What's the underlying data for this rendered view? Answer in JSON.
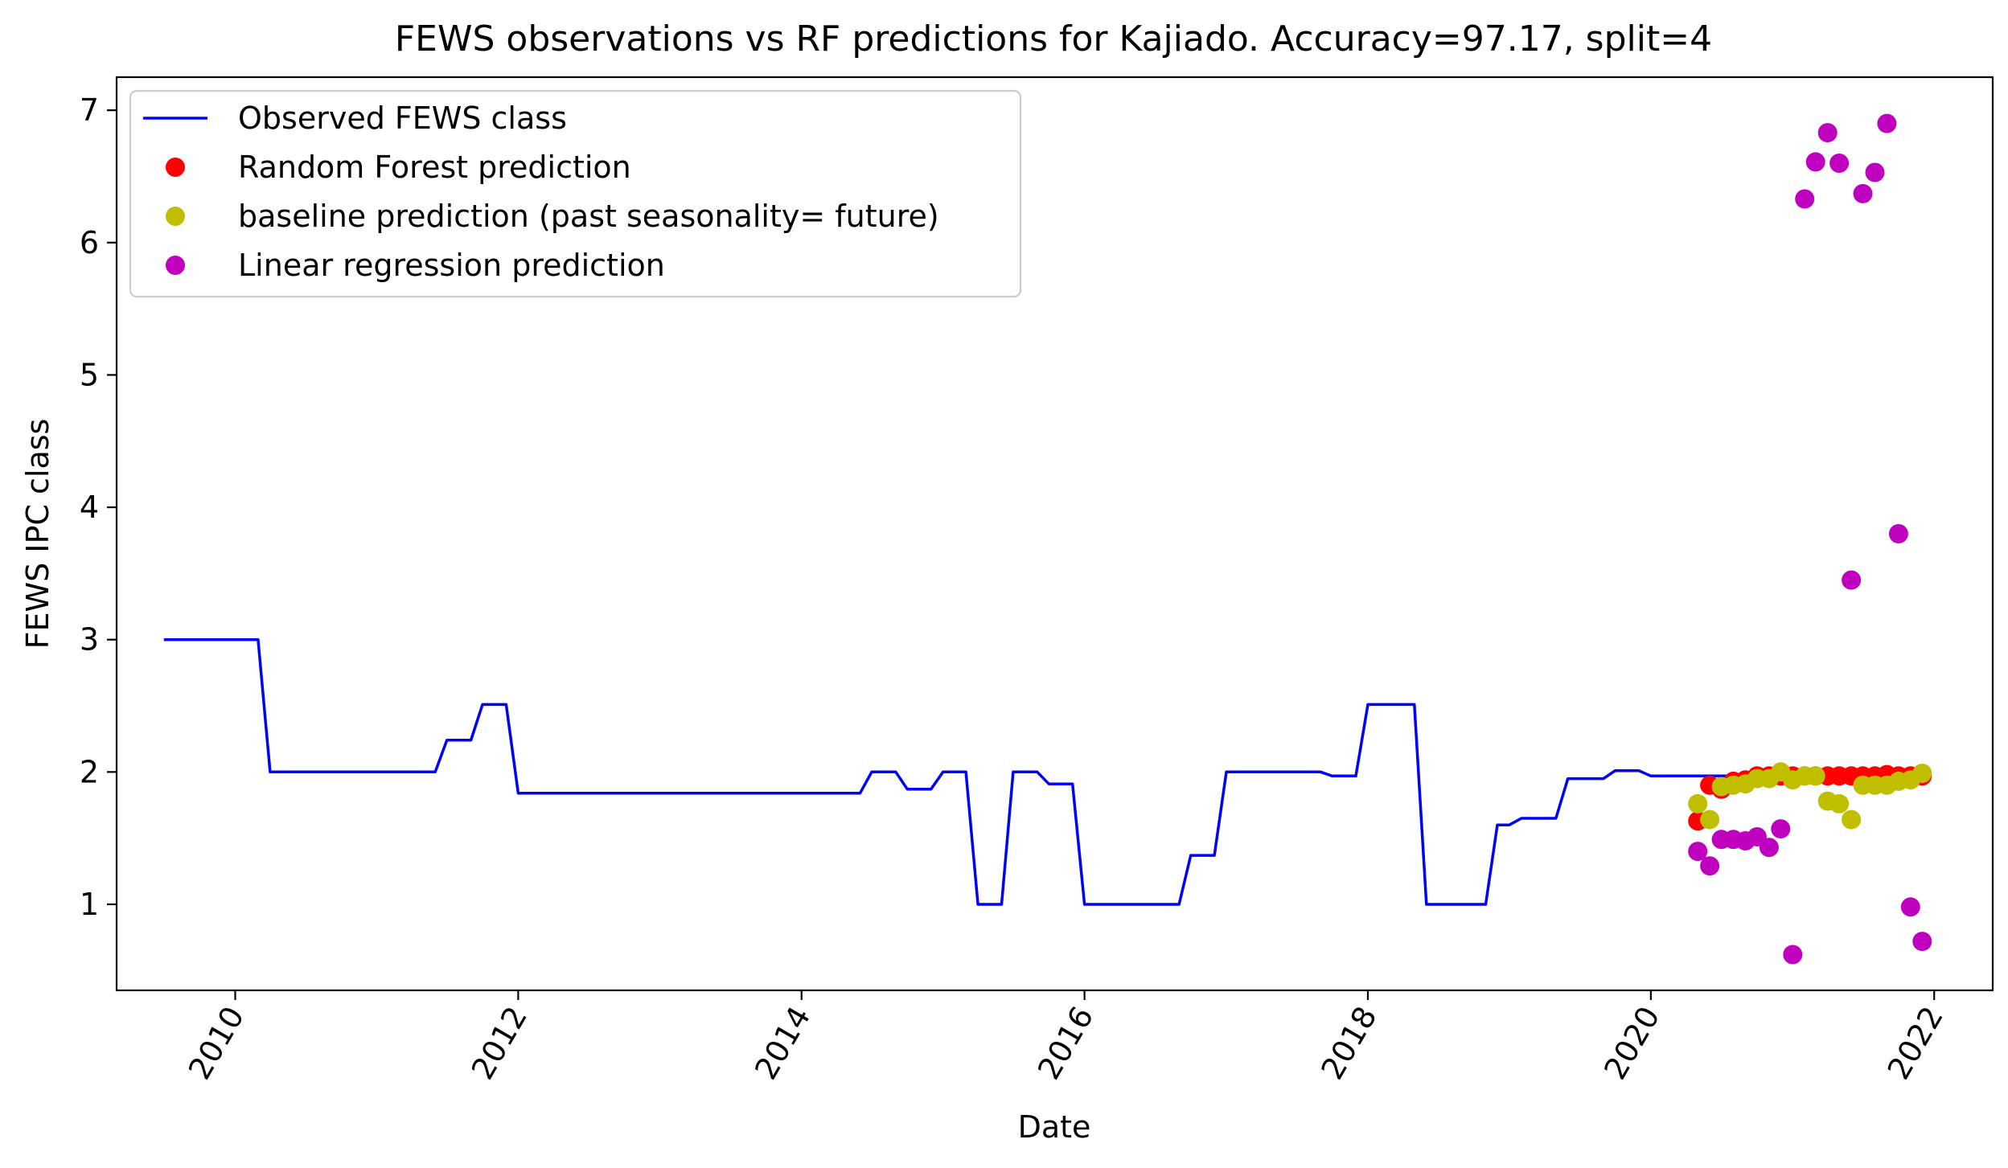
{
  "chart_data": {
    "type": "line",
    "title": "FEWS observations vs RF predictions for Kajiado. Accuracy=97.17, split=4",
    "xlabel": "Date",
    "ylabel": "FEWS IPC class",
    "xlim": [
      "2009-03-01",
      "2022-06-01"
    ],
    "ylim": [
      0.35,
      7.25
    ],
    "x_ticks": [
      {
        "label": "2010",
        "date": "2010-01-01"
      },
      {
        "label": "2012",
        "date": "2012-01-01"
      },
      {
        "label": "2014",
        "date": "2014-01-01"
      },
      {
        "label": "2016",
        "date": "2016-01-01"
      },
      {
        "label": "2018",
        "date": "2018-01-01"
      },
      {
        "label": "2020",
        "date": "2020-01-01"
      },
      {
        "label": "2022",
        "date": "2022-01-01"
      }
    ],
    "y_ticks": [
      {
        "label": "1",
        "value": 1
      },
      {
        "label": "2",
        "value": 2
      },
      {
        "label": "3",
        "value": 3
      },
      {
        "label": "4",
        "value": 4
      },
      {
        "label": "5",
        "value": 5
      },
      {
        "label": "6",
        "value": 6
      },
      {
        "label": "7",
        "value": 7
      }
    ],
    "x_tick_rotation": 60,
    "grid": false,
    "legend_position": "upper left",
    "series": [
      {
        "name": "Observed FEWS class",
        "type": "line",
        "color": "#0000ff",
        "points": [
          [
            "2009-07-01",
            3.0
          ],
          [
            "2010-03-01",
            3.0
          ],
          [
            "2010-04-01",
            2.0
          ],
          [
            "2011-06-01",
            2.0
          ],
          [
            "2011-07-01",
            2.24
          ],
          [
            "2011-09-01",
            2.24
          ],
          [
            "2011-10-01",
            2.51
          ],
          [
            "2011-12-01",
            2.51
          ],
          [
            "2012-01-01",
            1.84
          ],
          [
            "2014-06-01",
            1.84
          ],
          [
            "2014-07-01",
            2.0
          ],
          [
            "2014-09-01",
            2.0
          ],
          [
            "2014-10-01",
            1.87
          ],
          [
            "2014-12-01",
            1.87
          ],
          [
            "2015-01-01",
            2.0
          ],
          [
            "2015-03-01",
            2.0
          ],
          [
            "2015-04-01",
            1.0
          ],
          [
            "2015-06-01",
            1.0
          ],
          [
            "2015-07-01",
            2.0
          ],
          [
            "2015-09-01",
            2.0
          ],
          [
            "2015-10-01",
            1.91
          ],
          [
            "2015-12-01",
            1.91
          ],
          [
            "2016-01-01",
            1.0
          ],
          [
            "2016-09-01",
            1.0
          ],
          [
            "2016-10-01",
            1.37
          ],
          [
            "2016-12-01",
            1.37
          ],
          [
            "2017-01-01",
            2.0
          ],
          [
            "2017-09-01",
            2.0
          ],
          [
            "2017-10-01",
            1.97
          ],
          [
            "2017-12-01",
            1.97
          ],
          [
            "2018-01-01",
            2.51
          ],
          [
            "2018-05-01",
            2.51
          ],
          [
            "2018-06-01",
            1.0
          ],
          [
            "2018-11-01",
            1.0
          ],
          [
            "2018-12-01",
            1.6
          ],
          [
            "2019-01-01",
            1.6
          ],
          [
            "2019-02-01",
            1.65
          ],
          [
            "2019-05-01",
            1.65
          ],
          [
            "2019-06-01",
            1.95
          ],
          [
            "2019-09-01",
            1.95
          ],
          [
            "2019-10-01",
            2.01
          ],
          [
            "2019-12-01",
            2.01
          ],
          [
            "2020-01-01",
            1.97
          ],
          [
            "2020-09-01",
            1.97
          ],
          [
            "2020-10-01",
            1.97
          ],
          [
            "2021-12-01",
            1.97
          ]
        ]
      },
      {
        "name": "Random Forest prediction",
        "type": "scatter",
        "color": "#ff0000",
        "points": [
          [
            "2020-05-01",
            1.63
          ],
          [
            "2020-06-01",
            1.9
          ],
          [
            "2020-07-01",
            1.87
          ],
          [
            "2020-08-01",
            1.93
          ],
          [
            "2020-09-01",
            1.94
          ],
          [
            "2020-10-01",
            1.97
          ],
          [
            "2020-11-01",
            1.97
          ],
          [
            "2020-12-01",
            1.97
          ],
          [
            "2021-01-01",
            1.97
          ],
          [
            "2021-02-01",
            1.97
          ],
          [
            "2021-03-01",
            1.97
          ],
          [
            "2021-04-01",
            1.97
          ],
          [
            "2021-05-01",
            1.97
          ],
          [
            "2021-06-01",
            1.97
          ],
          [
            "2021-07-01",
            1.97
          ],
          [
            "2021-08-01",
            1.97
          ],
          [
            "2021-09-01",
            1.98
          ],
          [
            "2021-10-01",
            1.97
          ],
          [
            "2021-11-01",
            1.97
          ],
          [
            "2021-12-01",
            1.97
          ]
        ]
      },
      {
        "name": "baseline prediction (past seasonality= future)",
        "type": "scatter",
        "color": "#bfbf00",
        "points": [
          [
            "2020-05-01",
            1.76
          ],
          [
            "2020-06-01",
            1.64
          ],
          [
            "2020-07-01",
            1.89
          ],
          [
            "2020-08-01",
            1.9
          ],
          [
            "2020-09-01",
            1.91
          ],
          [
            "2020-10-01",
            1.95
          ],
          [
            "2020-11-01",
            1.95
          ],
          [
            "2020-12-01",
            2.0
          ],
          [
            "2021-01-01",
            1.94
          ],
          [
            "2021-02-01",
            1.97
          ],
          [
            "2021-03-01",
            1.97
          ],
          [
            "2021-04-01",
            1.78
          ],
          [
            "2021-05-01",
            1.76
          ],
          [
            "2021-06-01",
            1.64
          ],
          [
            "2021-07-01",
            1.9
          ],
          [
            "2021-08-01",
            1.9
          ],
          [
            "2021-09-01",
            1.9
          ],
          [
            "2021-10-01",
            1.93
          ],
          [
            "2021-11-01",
            1.94
          ],
          [
            "2021-12-01",
            1.99
          ]
        ]
      },
      {
        "name": "Linear regression prediction",
        "type": "scatter",
        "color": "#bf00bf",
        "points": [
          [
            "2020-05-01",
            1.4
          ],
          [
            "2020-06-01",
            1.29
          ],
          [
            "2020-07-01",
            1.49
          ],
          [
            "2020-08-01",
            1.49
          ],
          [
            "2020-09-01",
            1.48
          ],
          [
            "2020-10-01",
            1.51
          ],
          [
            "2020-11-01",
            1.43
          ],
          [
            "2020-12-01",
            1.57
          ],
          [
            "2021-01-01",
            0.62
          ],
          [
            "2021-02-01",
            6.33
          ],
          [
            "2021-03-01",
            6.61
          ],
          [
            "2021-04-01",
            6.83
          ],
          [
            "2021-05-01",
            6.6
          ],
          [
            "2021-06-01",
            3.45
          ],
          [
            "2021-07-01",
            6.37
          ],
          [
            "2021-08-01",
            6.53
          ],
          [
            "2021-09-01",
            6.9
          ],
          [
            "2021-10-01",
            3.8
          ],
          [
            "2021-11-01",
            0.98
          ],
          [
            "2021-12-01",
            0.72
          ]
        ]
      }
    ]
  }
}
